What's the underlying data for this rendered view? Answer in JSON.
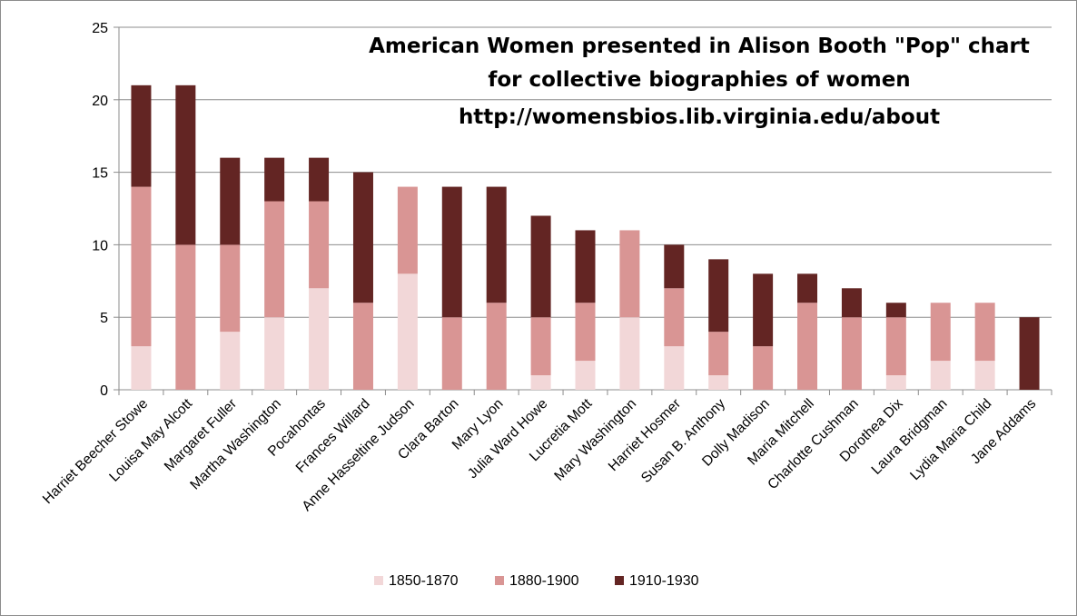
{
  "chart_data": {
    "type": "bar",
    "stacked": true,
    "title_lines": [
      "American Women presented in Alison Booth \"Pop\" chart",
      "for collective biographies of women",
      "http://womensbios.lib.virginia.edu/about"
    ],
    "categories": [
      "Harriet Beecher Stowe",
      "Louisa May Alcott",
      "Margaret Fuller",
      "Martha Washington",
      "Pocahontas",
      "Frances Willard",
      "Anne Hasseltine Judson",
      "Clara Barton",
      "Mary Lyon",
      "Julia Ward Howe",
      "Lucretia Mott",
      "Mary Washington",
      "Harriet Hosmer",
      "Susan B. Anthony",
      "Dolly Madison",
      "Maria Mitchell",
      "Charlotte Cushman",
      "Dorothea Dix",
      "Laura Bridgman",
      "Lydia Maria Child",
      "Jane Addams"
    ],
    "series": [
      {
        "name": "1850-1870",
        "color": "#f2d7d8",
        "values": [
          3,
          0,
          4,
          5,
          7,
          0,
          8,
          0,
          0,
          1,
          2,
          5,
          3,
          1,
          0,
          0,
          0,
          1,
          2,
          2,
          0
        ]
      },
      {
        "name": "1880-1900",
        "color": "#d99594",
        "values": [
          11,
          10,
          6,
          8,
          6,
          6,
          6,
          5,
          6,
          4,
          4,
          6,
          4,
          3,
          3,
          6,
          5,
          4,
          4,
          4,
          0
        ]
      },
      {
        "name": "1910-1930",
        "color": "#632523",
        "values": [
          7,
          11,
          6,
          3,
          3,
          9,
          0,
          9,
          8,
          7,
          5,
          0,
          3,
          5,
          5,
          2,
          2,
          1,
          0,
          0,
          5
        ]
      }
    ],
    "ylim": [
      0,
      25
    ],
    "yticks": [
      "0",
      "5",
      "10",
      "15",
      "20",
      "25"
    ],
    "grid": true,
    "legend_position": "bottom"
  }
}
